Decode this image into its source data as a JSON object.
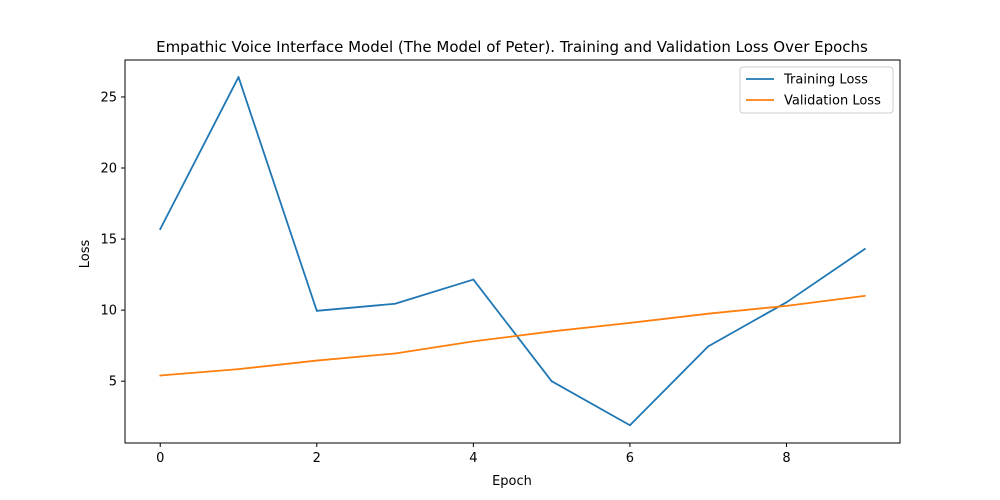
{
  "chart_data": {
    "type": "line",
    "title": "Empathic Voice Interface Model (The Model of Peter). Training and Validation Loss Over Epochs",
    "xlabel": "Epoch",
    "ylabel": "Loss",
    "x": [
      0,
      1,
      2,
      3,
      4,
      5,
      6,
      7,
      8,
      9
    ],
    "xlim": [
      -0.45,
      9.45
    ],
    "ylim": [
      0.65,
      27.6
    ],
    "xticks": [
      0,
      2,
      4,
      6,
      8
    ],
    "yticks": [
      5,
      10,
      15,
      20,
      25
    ],
    "grid": false,
    "legend_position": "top-right",
    "series": [
      {
        "name": "Training Loss",
        "color": "#1f77b4",
        "values": [
          15.7,
          26.4,
          9.95,
          10.45,
          12.15,
          5.0,
          1.9,
          7.45,
          10.55,
          14.3
        ]
      },
      {
        "name": "Validation Loss",
        "color": "#ff7f0e",
        "values": [
          5.4,
          5.85,
          6.45,
          6.95,
          7.8,
          8.5,
          9.1,
          9.75,
          10.3,
          11.0
        ]
      }
    ]
  }
}
